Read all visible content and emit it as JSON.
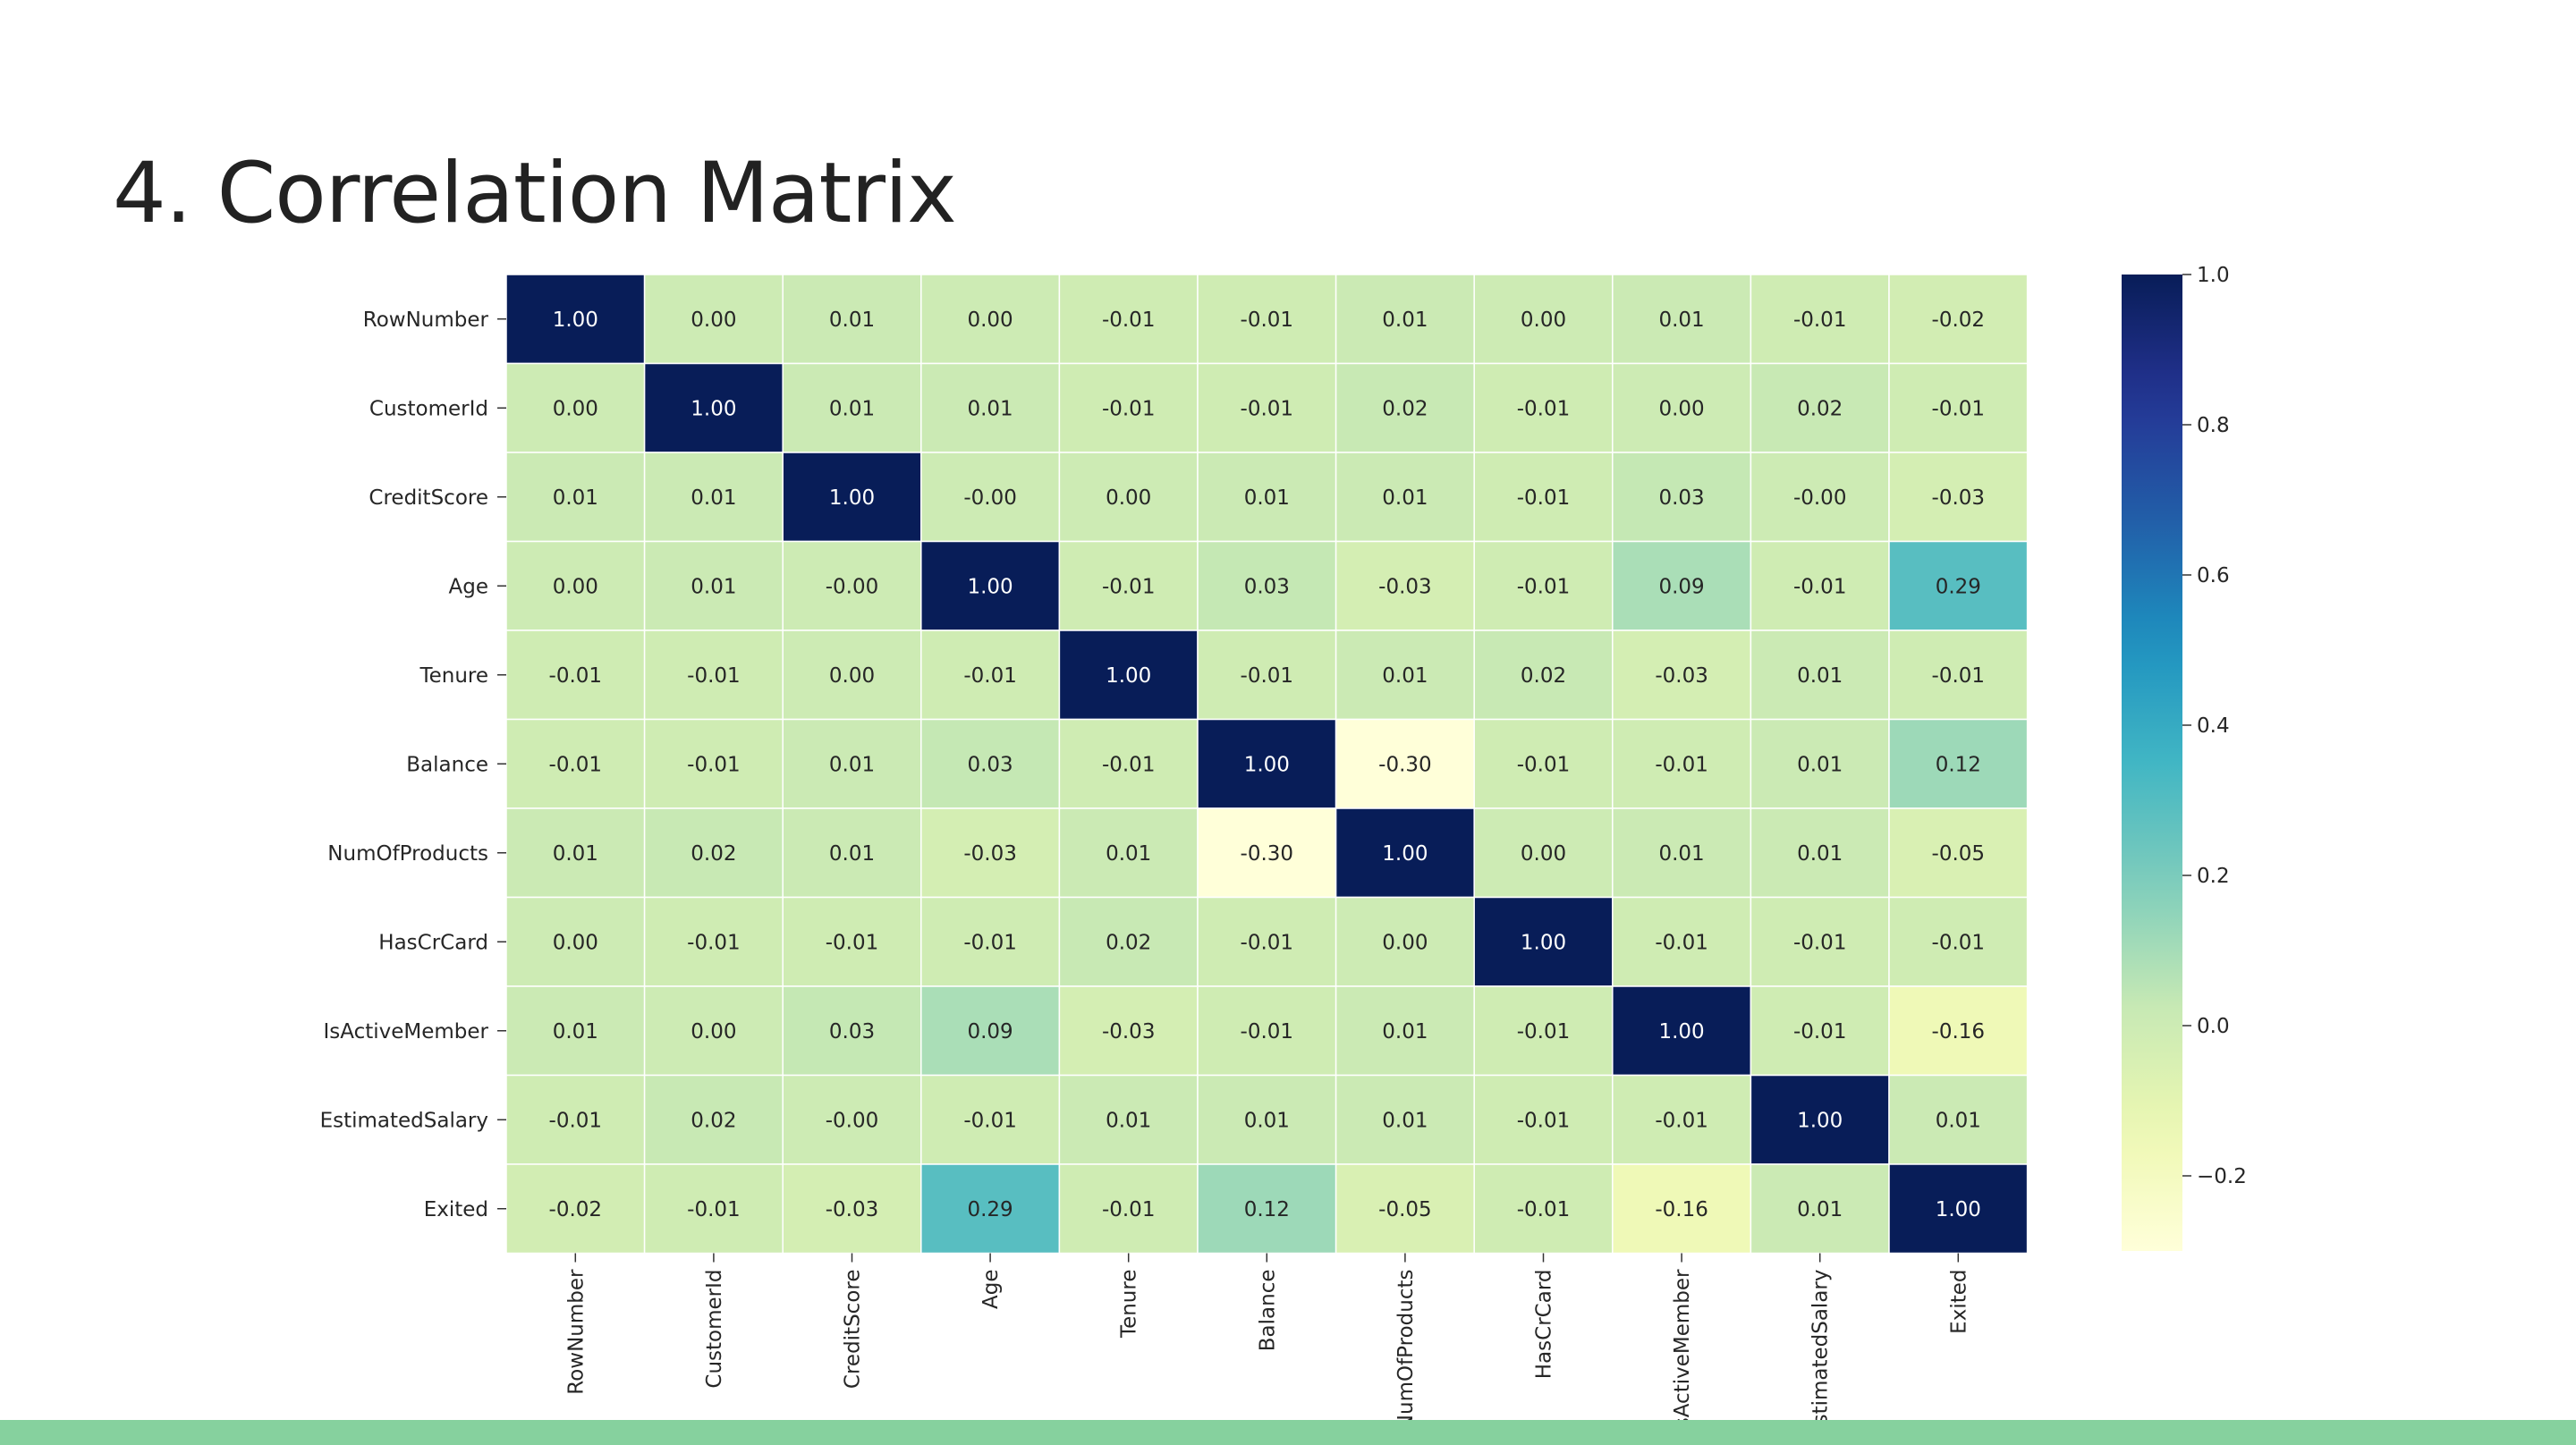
{
  "slide": {
    "title": "4. Correlation Matrix",
    "accent_color": "#86d19e"
  },
  "chart_data": {
    "type": "heatmap",
    "labels": [
      "RowNumber",
      "CustomerId",
      "CreditScore",
      "Age",
      "Tenure",
      "Balance",
      "NumOfProducts",
      "HasCrCard",
      "IsActiveMember",
      "EstimatedSalary",
      "Exited"
    ],
    "values": [
      [
        1.0,
        0.0,
        0.01,
        0.0,
        -0.01,
        -0.01,
        0.01,
        0.0,
        0.01,
        -0.01,
        -0.02
      ],
      [
        0.0,
        1.0,
        0.01,
        0.01,
        -0.01,
        -0.01,
        0.02,
        -0.01,
        0.0,
        0.02,
        -0.01
      ],
      [
        0.01,
        0.01,
        1.0,
        -0.0,
        0.0,
        0.01,
        0.01,
        -0.01,
        0.03,
        -0.0,
        -0.03
      ],
      [
        0.0,
        0.01,
        -0.0,
        1.0,
        -0.01,
        0.03,
        -0.03,
        -0.01,
        0.09,
        -0.01,
        0.29
      ],
      [
        -0.01,
        -0.01,
        0.0,
        -0.01,
        1.0,
        -0.01,
        0.01,
        0.02,
        -0.03,
        0.01,
        -0.01
      ],
      [
        -0.01,
        -0.01,
        0.01,
        0.03,
        -0.01,
        1.0,
        -0.3,
        -0.01,
        -0.01,
        0.01,
        0.12
      ],
      [
        0.01,
        0.02,
        0.01,
        -0.03,
        0.01,
        -0.3,
        1.0,
        0.0,
        0.01,
        0.01,
        -0.05
      ],
      [
        0.0,
        -0.01,
        -0.01,
        -0.01,
        0.02,
        -0.01,
        0.0,
        1.0,
        -0.01,
        -0.01,
        -0.01
      ],
      [
        0.01,
        0.0,
        0.03,
        0.09,
        -0.03,
        -0.01,
        0.01,
        -0.01,
        1.0,
        -0.01,
        -0.16
      ],
      [
        -0.01,
        0.02,
        -0.0,
        -0.01,
        0.01,
        0.01,
        0.01,
        -0.01,
        -0.01,
        1.0,
        0.01
      ],
      [
        -0.02,
        -0.01,
        -0.03,
        0.29,
        -0.01,
        0.12,
        -0.05,
        -0.01,
        -0.16,
        0.01,
        1.0
      ]
    ],
    "value_format": "2 decimals",
    "colormap": "YlGnBu",
    "colorbar": {
      "range": [
        -0.3,
        1.0
      ],
      "ticks": [
        1.0,
        0.8,
        0.6,
        0.4,
        0.2,
        0.0,
        -0.2
      ],
      "tick_labels": [
        "1.0",
        "0.8",
        "0.6",
        "0.4",
        "0.2",
        "0.0",
        "−0.2"
      ],
      "placement": "right"
    },
    "grid": true,
    "cell_border_color": "#ffffff"
  }
}
